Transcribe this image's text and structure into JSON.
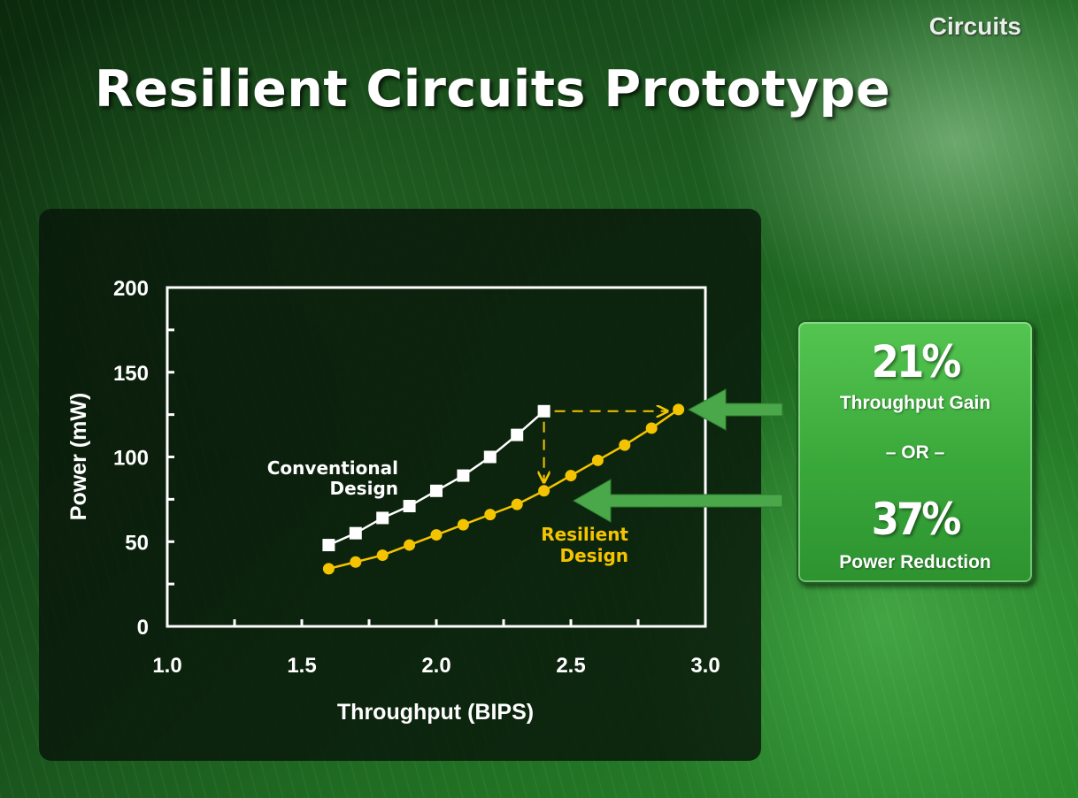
{
  "header": {
    "section_label": "Circuits",
    "title": "Resilient Circuits Prototype"
  },
  "colors": {
    "conventional": "#ffffff",
    "resilient": "#f5c400",
    "arrow_green": "#4aa84a"
  },
  "chart_data": {
    "type": "line",
    "xlabel": "Throughput (BIPS)",
    "ylabel": "Power (mW)",
    "xlim": [
      1.0,
      3.0
    ],
    "ylim": [
      0,
      200
    ],
    "x_ticks": [
      "1.0",
      "1.5",
      "2.0",
      "2.5",
      "3.0"
    ],
    "y_ticks": [
      "0",
      "50",
      "100",
      "150",
      "200"
    ],
    "grid": false,
    "series": [
      {
        "name": "Conventional Design",
        "label_lines": [
          "Conventional",
          "Design"
        ],
        "marker": "square",
        "x": [
          1.6,
          1.7,
          1.8,
          1.9,
          2.0,
          2.1,
          2.2,
          2.3,
          2.4
        ],
        "y": [
          48,
          55,
          64,
          71,
          80,
          89,
          100,
          113,
          127
        ]
      },
      {
        "name": "Resilient Design",
        "label_lines": [
          "Resilient",
          "Design"
        ],
        "marker": "circle",
        "x": [
          1.6,
          1.7,
          1.8,
          1.9,
          2.0,
          2.1,
          2.2,
          2.3,
          2.4,
          2.5,
          2.6,
          2.7,
          2.8,
          2.9
        ],
        "y": [
          34,
          38,
          42,
          48,
          54,
          60,
          66,
          72,
          80,
          89,
          98,
          107,
          117,
          128
        ]
      }
    ]
  },
  "callout": {
    "throughput_gain_value": "21%",
    "throughput_gain_label": "Throughput Gain",
    "or_label": "– OR –",
    "power_reduction_value": "37%",
    "power_reduction_label": "Power Reduction"
  }
}
